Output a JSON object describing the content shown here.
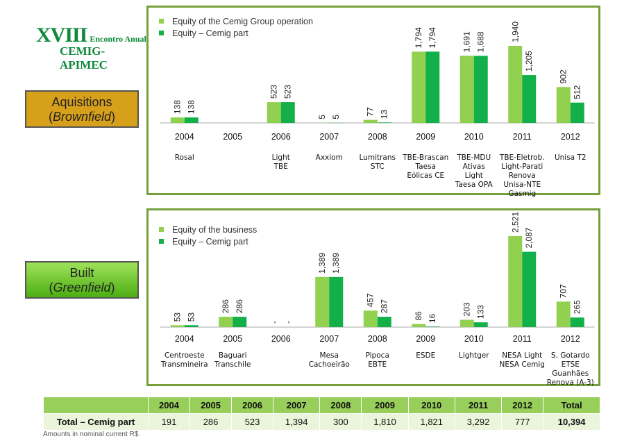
{
  "logo": {
    "roman": "XVIII",
    "encontro": "Encontro Anual",
    "org": "CEMIG-APIMEC"
  },
  "sections": [
    {
      "line1": "Aquisitions",
      "line2": "Brownfield"
    },
    {
      "line1": "Built",
      "line2": "Greenfield"
    }
  ],
  "colors": {
    "series1": "#92d050",
    "series2": "#13b04a",
    "border": "#76a03c",
    "brown": "#d7a01a"
  },
  "chart_data": [
    {
      "type": "bar",
      "categories": [
        "2004",
        "2005",
        "2006",
        "2007",
        "2008",
        "2009",
        "2010",
        "2011",
        "2012"
      ],
      "series": [
        {
          "name": "Equity of the Cemig Group operation",
          "values": [
            138,
            null,
            523,
            5,
            77,
            1794,
            1691,
            1940,
            902
          ]
        },
        {
          "name": "Equity – Cemig part",
          "values": [
            138,
            null,
            523,
            5,
            13,
            1794,
            1688,
            1205,
            512
          ]
        }
      ],
      "value_labels": [
        [
          "138",
          "",
          "523",
          "5",
          "77",
          "1,794",
          "1,691",
          "1,940",
          "902"
        ],
        [
          "138",
          "",
          "523",
          "5",
          "13",
          "1,794",
          "1,688",
          "1,205",
          "512"
        ]
      ],
      "ylim": [
        0,
        1940
      ],
      "projects": [
        "Rosal",
        "",
        "Light\nTBE",
        "Axxiom",
        "Lumitrans\nSTC",
        "TBE-Brascan\nTaesa\nEólicas CE",
        "TBE-MDU\nAtivas\nLight\nTaesa OPA",
        "TBE-Eletrob.\nLight-Parati\nRenova\nUnisa-NTE\nGasmig",
        "Unisa T2"
      ]
    },
    {
      "type": "bar",
      "categories": [
        "2004",
        "2005",
        "2006",
        "2007",
        "2008",
        "2009",
        "2010",
        "2011",
        "2012"
      ],
      "series": [
        {
          "name": "Equity of the business",
          "values": [
            53,
            286,
            0,
            1389,
            457,
            86,
            203,
            2521,
            707
          ]
        },
        {
          "name": "Equity – Cemig part",
          "values": [
            53,
            286,
            0,
            1389,
            287,
            16,
            133,
            2087,
            265
          ]
        }
      ],
      "value_labels": [
        [
          "53",
          "286",
          "-",
          "1,389",
          "457",
          "86",
          "203",
          "2,521",
          "707"
        ],
        [
          "53",
          "286",
          "-",
          "1,389",
          "287",
          "16",
          "133",
          "2,087",
          "265"
        ]
      ],
      "ylim": [
        0,
        2521
      ],
      "projects": [
        "Centroeste\nTransmineira",
        "Baguari\nTranschile",
        "",
        "Mesa\nCachoeirão",
        "Pipoca\nEBTE",
        "ESDE",
        "Lightger",
        "NESA Light\nNESA Cemig",
        "S. Gotardo\nETSE\nGuanhães\nRenova (A-3)"
      ]
    }
  ],
  "totals": {
    "years": [
      "2004",
      "2005",
      "2006",
      "2007",
      "2008",
      "2009",
      "2010",
      "2011",
      "2012"
    ],
    "total_header": "Total",
    "label": "Total – Cemig part",
    "values": [
      "191",
      "286",
      "523",
      "1,394",
      "300",
      "1,810",
      "1,821",
      "3,292",
      "777"
    ],
    "grand_total": "10,394"
  },
  "note": "Amounts in nominal current R$."
}
